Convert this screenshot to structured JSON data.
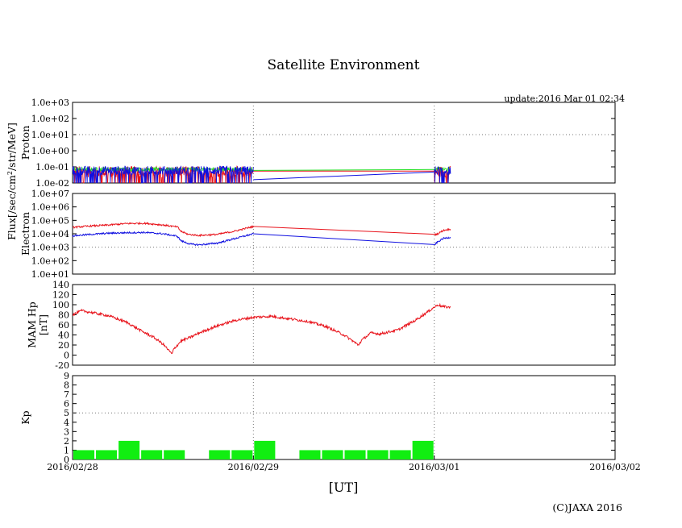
{
  "title": "Satellite Environment",
  "update": "update:2016 Mar 01 02:34",
  "copyright": "(C)JAXA 2016",
  "colors": {
    "red": "#e8141c",
    "blue": "#1010e0",
    "green": "#22dd22",
    "kp": "#11ee11",
    "grid": "#777777"
  },
  "flux_label": {
    "main": "Flux[/sec/cm",
    "sup": "2",
    "rest": "/str/MeV]"
  },
  "chart_data": {
    "x_axis": {
      "label": "[UT]",
      "ticks": [
        "2016/02/28",
        "2016/02/29",
        "2016/03/01",
        "2016/03/02"
      ],
      "range_days": [
        0,
        3
      ],
      "gridlines_at_days": [
        1,
        2
      ]
    },
    "panels": [
      {
        "id": "proton",
        "ylabel": [
          "Proton"
        ],
        "scale": "log",
        "ylim": [
          0.01,
          1000
        ],
        "yticks": [
          "1.0e-02",
          "1.0e-01",
          "1.0e+00",
          "1.0e+01",
          "1.0e+02",
          "1.0e+03"
        ],
        "dotted_y": [
          10
        ],
        "series": [
          {
            "color": "red",
            "segments": [
              {
                "from": 0.0,
                "to": 1.0,
                "level": 0.05,
                "noise": 0.7,
                "spiky": true
              },
              {
                "from": 2.0,
                "to": 2.09,
                "level": 0.05,
                "noise": 0.7,
                "spiky": true
              }
            ],
            "bridge": [
              [
                1.0,
                0.055
              ],
              [
                2.0,
                0.055
              ]
            ]
          },
          {
            "color": "green",
            "segments": [
              {
                "from": 0.0,
                "to": 1.0,
                "level": 0.07,
                "noise": 0.25
              },
              {
                "from": 2.0,
                "to": 2.09,
                "level": 0.07,
                "noise": 0.25
              }
            ],
            "bridge": [
              [
                1.0,
                0.06
              ],
              [
                2.0,
                0.068
              ]
            ]
          },
          {
            "color": "blue",
            "segments": [
              {
                "from": 0.0,
                "to": 1.0,
                "level": 0.06,
                "noise": 0.55,
                "spiky": true
              },
              {
                "from": 2.0,
                "to": 2.09,
                "level": 0.06,
                "noise": 0.55,
                "spiky": true
              }
            ],
            "bridge": [
              [
                1.0,
                0.016
              ],
              [
                2.0,
                0.048
              ]
            ]
          }
        ]
      },
      {
        "id": "electron",
        "ylabel": [
          "Electron"
        ],
        "scale": "log",
        "ylim": [
          10,
          10000000
        ],
        "yticks": [
          "1.0e+01",
          "1.0e+02",
          "1.0e+03",
          "1.0e+04",
          "1.0e+05",
          "1.0e+06",
          "1.0e+07"
        ],
        "dotted_y": [
          1000
        ],
        "series": [
          {
            "color": "red",
            "points": [
              [
                0.0,
                30000
              ],
              [
                0.1,
                38000
              ],
              [
                0.2,
                45000
              ],
              [
                0.3,
                58000
              ],
              [
                0.4,
                60000
              ],
              [
                0.5,
                45000
              ],
              [
                0.58,
                32000
              ],
              [
                0.6,
                15000
              ],
              [
                0.64,
                9000
              ],
              [
                0.7,
                7500
              ],
              [
                0.8,
                9000
              ],
              [
                0.9,
                16000
              ],
              [
                1.0,
                35000
              ],
              [
                2.0,
                8500
              ],
              [
                2.02,
                10000
              ],
              [
                2.05,
                18000
              ],
              [
                2.09,
                22000
              ]
            ],
            "noise": 0.12
          },
          {
            "color": "blue",
            "points": [
              [
                0.0,
                7000
              ],
              [
                0.1,
                9000
              ],
              [
                0.2,
                11000
              ],
              [
                0.3,
                12000
              ],
              [
                0.4,
                12500
              ],
              [
                0.5,
                10000
              ],
              [
                0.58,
                6500
              ],
              [
                0.6,
                3000
              ],
              [
                0.65,
                1700
              ],
              [
                0.7,
                1500
              ],
              [
                0.8,
                2000
              ],
              [
                0.9,
                4500
              ],
              [
                1.0,
                10000
              ],
              [
                2.0,
                1500
              ],
              [
                2.02,
                2500
              ],
              [
                2.05,
                4500
              ],
              [
                2.09,
                5500
              ]
            ],
            "noise": 0.12
          }
        ]
      },
      {
        "id": "mam",
        "ylabel": [
          "MAM Hp",
          "[nT]"
        ],
        "scale": "linear",
        "ylim": [
          -20,
          140
        ],
        "yticks": [
          "-20",
          "0",
          "20",
          "40",
          "60",
          "80",
          "100",
          "120",
          "140"
        ],
        "series": [
          {
            "color": "red",
            "points": [
              [
                0.0,
                80
              ],
              [
                0.05,
                88
              ],
              [
                0.1,
                85
              ],
              [
                0.2,
                78
              ],
              [
                0.3,
                65
              ],
              [
                0.38,
                48
              ],
              [
                0.45,
                35
              ],
              [
                0.5,
                22
              ],
              [
                0.53,
                10
              ],
              [
                0.55,
                2
              ],
              [
                0.56,
                12
              ],
              [
                0.58,
                20
              ],
              [
                0.6,
                28
              ],
              [
                0.65,
                35
              ],
              [
                0.7,
                44
              ],
              [
                0.8,
                58
              ],
              [
                0.9,
                69
              ],
              [
                1.0,
                75
              ],
              [
                1.1,
                77
              ],
              [
                1.2,
                72
              ],
              [
                1.3,
                67
              ],
              [
                1.4,
                57
              ],
              [
                1.5,
                40
              ],
              [
                1.55,
                28
              ],
              [
                1.58,
                20
              ],
              [
                1.6,
                30
              ],
              [
                1.65,
                44
              ],
              [
                1.7,
                42
              ],
              [
                1.8,
                50
              ],
              [
                1.9,
                70
              ],
              [
                2.0,
                95
              ],
              [
                2.02,
                100
              ],
              [
                2.05,
                96
              ],
              [
                2.09,
                95
              ]
            ],
            "noise": 2.5
          }
        ]
      },
      {
        "id": "kp",
        "ylabel": [
          "Kp"
        ],
        "scale": "linear",
        "ylim": [
          0,
          9
        ],
        "yticks": [
          "0",
          "1",
          "2",
          "3",
          "4",
          "5",
          "6",
          "7",
          "8",
          "9"
        ],
        "dotted_y": [
          5
        ],
        "type": "bar",
        "bar_width_days": 0.125,
        "bars": [
          1,
          1,
          2,
          1,
          1,
          0,
          1,
          1,
          2,
          0,
          1,
          1,
          1,
          1,
          1,
          2
        ]
      }
    ]
  }
}
